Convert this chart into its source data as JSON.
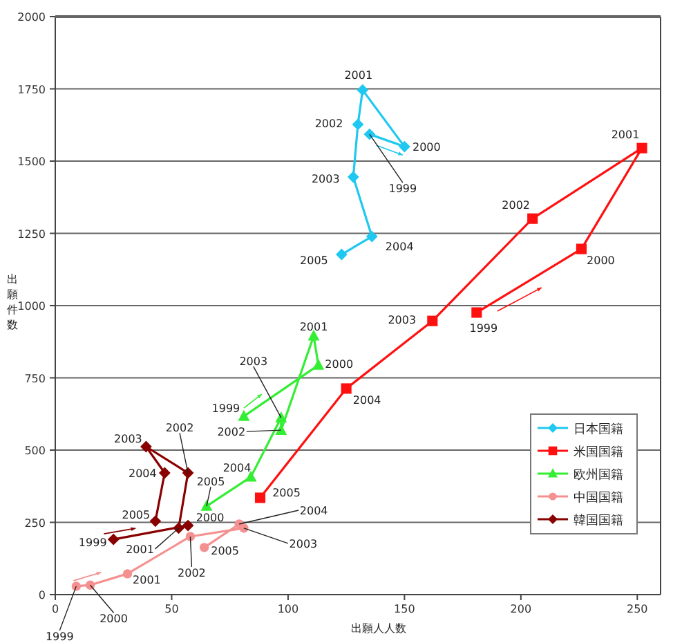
{
  "chart_data": {
    "type": "line",
    "xlabel": "出願人人数",
    "ylabel": "出願件数",
    "xlim": [
      0,
      260
    ],
    "ylim": [
      0,
      2000
    ],
    "xticks": [
      0,
      50,
      100,
      150,
      200,
      250
    ],
    "yticks": [
      0,
      250,
      500,
      750,
      1000,
      1250,
      1500,
      1750,
      2000
    ],
    "grid": "y",
    "legend": "right",
    "line_style": "solid",
    "series": [
      {
        "name": "日本国籍",
        "color": "#1ec8f0",
        "marker": "diamond",
        "x": [
          135,
          150,
          132,
          130,
          128,
          136,
          123
        ],
        "values": [
          1593,
          1550,
          1746,
          1627,
          1445,
          1239,
          1177
        ]
      },
      {
        "name": "米国国籍",
        "color": "#ff1010",
        "marker": "square",
        "x": [
          181,
          226,
          252,
          205,
          162,
          125,
          88
        ],
        "values": [
          976,
          1196,
          1545,
          1301,
          947,
          713,
          335
        ]
      },
      {
        "name": "欧州国籍",
        "color": "#33ee33",
        "marker": "triangle",
        "x": [
          81,
          113,
          111,
          97,
          97,
          84,
          65
        ],
        "values": [
          617,
          794,
          895,
          569,
          612,
          407,
          306
        ]
      },
      {
        "name": "中国国籍",
        "color": "#f59090",
        "marker": "circle",
        "x": [
          9,
          15,
          31,
          58,
          81,
          79,
          64
        ],
        "values": [
          29,
          33,
          72,
          201,
          230,
          244,
          163
        ]
      },
      {
        "name": "韓国国籍",
        "color": "#880000",
        "marker": "diamond",
        "x": [
          25,
          57,
          53,
          57,
          39,
          47,
          43
        ],
        "values": [
          191,
          239,
          230,
          421,
          512,
          421,
          254
        ]
      }
    ],
    "annotations": [
      {
        "text": "1999",
        "x": 135,
        "y": 1593
      },
      {
        "text": "2000",
        "x": 150,
        "y": 1550
      },
      {
        "text": "2001",
        "x": 132,
        "y": 1746
      },
      {
        "text": "2002",
        "x": 130,
        "y": 1627
      },
      {
        "text": "2003",
        "x": 128,
        "y": 1445
      },
      {
        "text": "2004",
        "x": 136,
        "y": 1239
      },
      {
        "text": "2005",
        "x": 123,
        "y": 1177
      },
      {
        "text": "1999",
        "x": 181,
        "y": 976
      },
      {
        "text": "2000",
        "x": 226,
        "y": 1196
      },
      {
        "text": "2001",
        "x": 252,
        "y": 1545
      },
      {
        "text": "2002",
        "x": 205,
        "y": 1301
      },
      {
        "text": "2003",
        "x": 162,
        "y": 947
      },
      {
        "text": "2004",
        "x": 125,
        "y": 713
      },
      {
        "text": "2005",
        "x": 88,
        "y": 335
      },
      {
        "text": "1999",
        "x": 81,
        "y": 617
      },
      {
        "text": "2000",
        "x": 113,
        "y": 794
      },
      {
        "text": "2001",
        "x": 111,
        "y": 895
      },
      {
        "text": "2002",
        "x": 97,
        "y": 569
      },
      {
        "text": "2003",
        "x": 97,
        "y": 612
      },
      {
        "text": "2004",
        "x": 84,
        "y": 407
      },
      {
        "text": "2005",
        "x": 65,
        "y": 306
      },
      {
        "text": "1999",
        "x": 25,
        "y": 191
      },
      {
        "text": "2000",
        "x": 57,
        "y": 239
      },
      {
        "text": "2001",
        "x": 53,
        "y": 230
      },
      {
        "text": "2002",
        "x": 57,
        "y": 421
      },
      {
        "text": "2003",
        "x": 39,
        "y": 512
      },
      {
        "text": "2004",
        "x": 47,
        "y": 421
      },
      {
        "text": "2005",
        "x": 43,
        "y": 254
      },
      {
        "text": "1999",
        "x": 9,
        "y": 29
      },
      {
        "text": "2000",
        "x": 15,
        "y": 33
      },
      {
        "text": "2001",
        "x": 31,
        "y": 72
      },
      {
        "text": "2002",
        "x": 58,
        "y": 201
      },
      {
        "text": "2003",
        "x": 81,
        "y": 230
      },
      {
        "text": "2004",
        "x": 79,
        "y": 244
      },
      {
        "text": "2005",
        "x": 64,
        "y": 163
      }
    ]
  }
}
